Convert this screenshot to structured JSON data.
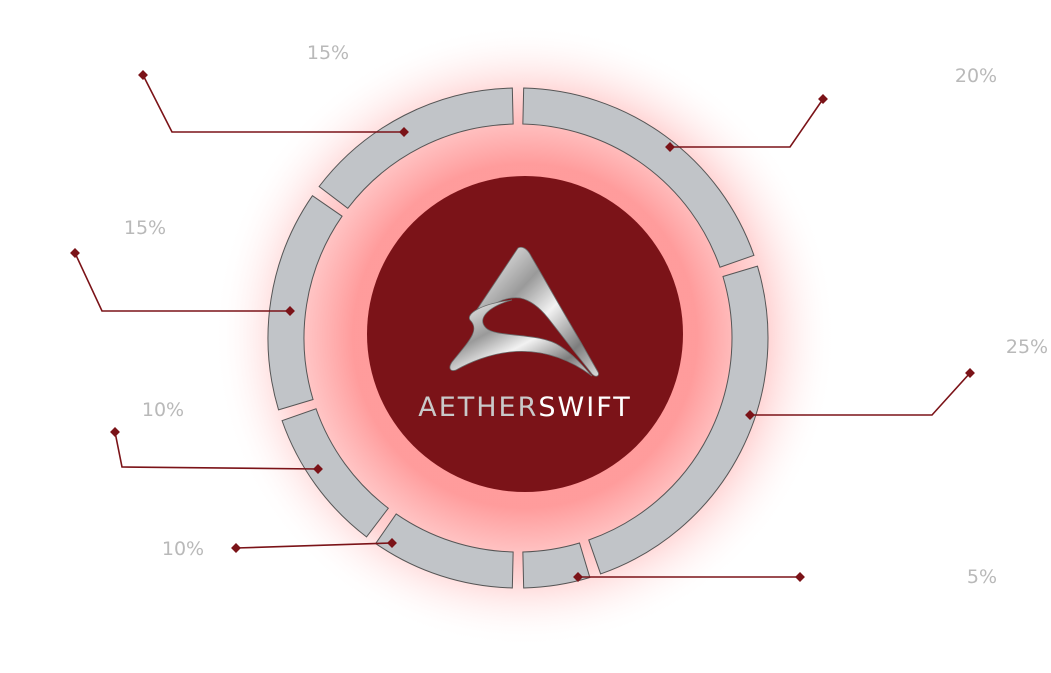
{
  "logo": {
    "text_left": "AETHER",
    "text_right": "SWIFT",
    "text_left_color": "#c9c9c9",
    "text_right_color": "#ffffff"
  },
  "colors": {
    "center": "#7b1318",
    "glow": "#ff5a5a",
    "segment_fill": "#c1c4c8",
    "segment_stroke": "#555555",
    "leader": "#7b1318",
    "label": "#b9b9b9"
  },
  "chart_data": {
    "type": "pie",
    "style": "segmented-ring",
    "start": "top",
    "direction": "clockwise",
    "slices": [
      {
        "label": "20%",
        "value": 20
      },
      {
        "label": "25%",
        "value": 25
      },
      {
        "label": "5%",
        "value": 5
      },
      {
        "label": "10%",
        "value": 10
      },
      {
        "label": "10%",
        "value": 10
      },
      {
        "label": "15%",
        "value": 15
      },
      {
        "label": "15%",
        "value": 15
      }
    ]
  }
}
